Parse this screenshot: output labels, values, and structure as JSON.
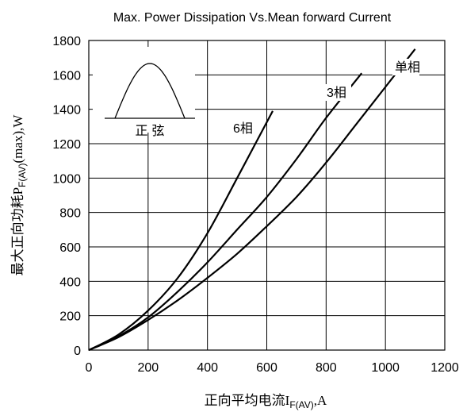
{
  "chart_data": {
    "type": "line",
    "title": "Max. Power Dissipation Vs.Mean forward Current",
    "xlabel": {
      "main": "正向平均电流I",
      "sub": "F(AV)",
      "tail": ",A"
    },
    "ylabel": {
      "main": "最大正向功耗P",
      "sub": "F(AV)",
      "tail": "(max),W"
    },
    "xlim": [
      0,
      1200
    ],
    "ylim": [
      0,
      1800
    ],
    "x_ticks": [
      0,
      200,
      400,
      600,
      800,
      1000,
      1200
    ],
    "y_ticks": [
      0,
      200,
      400,
      600,
      800,
      1000,
      1200,
      1400,
      1600,
      1800
    ],
    "grid": true,
    "inset": {
      "label": "正 弦",
      "shape": "half-sine"
    },
    "series": [
      {
        "name": "6相",
        "x": [
          0,
          100,
          200,
          300,
          400,
          500,
          620
        ],
        "y": [
          0,
          90,
          230,
          420,
          680,
          1000,
          1390
        ]
      },
      {
        "name": "3相",
        "x": [
          0,
          100,
          200,
          300,
          400,
          500,
          600,
          700,
          800,
          920
        ],
        "y": [
          0,
          80,
          190,
          340,
          510,
          700,
          890,
          1110,
          1350,
          1610
        ]
      },
      {
        "name": "单相",
        "x": [
          0,
          100,
          200,
          300,
          400,
          500,
          600,
          700,
          800,
          900,
          1000,
          1100
        ],
        "y": [
          0,
          75,
          175,
          290,
          420,
          560,
          720,
          890,
          1090,
          1310,
          1530,
          1750
        ]
      }
    ]
  }
}
